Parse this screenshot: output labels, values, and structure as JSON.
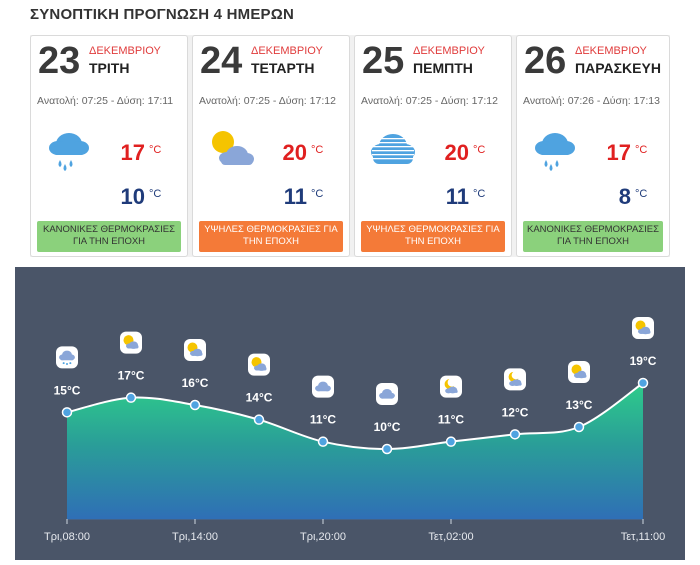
{
  "header": {
    "title": "ΣΥΝΟΠΤΙΚΗ ΠΡΟΓΝΩΣΗ 4 ΗΜΕΡΩΝ"
  },
  "cards": [
    {
      "day": "23",
      "month": "ΔΕΚΕΜΒΡΙΟΥ",
      "weekday": "ΤΡΙΤΗ",
      "sun": "Ανατολή: 07:25 - Δύση: 17:11",
      "icon": "rain-cloud-icon",
      "max": "17",
      "min": "10",
      "unit": "°C",
      "badge": "ΚΑΝΟΝΙΚΕΣ ΘΕΡΜΟΚΡΑΣΙΕΣ ΓΙΑ ΤΗΝ ΕΠΟΧΗ",
      "badge_color": "#8bd17c"
    },
    {
      "day": "24",
      "month": "ΔΕΚΕΜΒΡΙΟΥ",
      "weekday": "ΤΕΤΑΡΤΗ",
      "sun": "Ανατολή: 07:25 - Δύση: 17:12",
      "icon": "sun-cloud-icon",
      "max": "20",
      "min": "11",
      "unit": "°C",
      "badge": "ΥΨΗΛΕΣ ΘΕΡΜΟΚΡΑΣΙΕΣ ΓΙΑ ΤΗΝ ΕΠΟΧΗ",
      "badge_color": "#f47a38"
    },
    {
      "day": "25",
      "month": "ΔΕΚΕΜΒΡΙΟΥ",
      "weekday": "ΠΕΜΠΤΗ",
      "sun": "Ανατολή: 07:25 - Δύση: 17:12",
      "icon": "fog-cloud-icon",
      "max": "20",
      "min": "11",
      "unit": "°C",
      "badge": "ΥΨΗΛΕΣ ΘΕΡΜΟΚΡΑΣΙΕΣ ΓΙΑ ΤΗΝ ΕΠΟΧΗ",
      "badge_color": "#f47a38"
    },
    {
      "day": "26",
      "month": "ΔΕΚΕΜΒΡΙΟΥ",
      "weekday": "ΠΑΡΑΣΚΕΥΗ",
      "sun": "Ανατολή: 07:26 - Δύση: 17:13",
      "icon": "rain-cloud-icon",
      "max": "17",
      "min": "8",
      "unit": "°C",
      "badge": "ΚΑΝΟΝΙΚΕΣ ΘΕΡΜΟΚΡΑΣΙΕΣ ΓΙΑ ΤΗΝ ΕΠΟΧΗ",
      "badge_color": "#8bd17c"
    }
  ],
  "chart_data": {
    "type": "area",
    "title": "",
    "xlabel": "",
    "ylabel": "",
    "x_tick_labels": [
      "Τρι,08:00",
      "Τρι,14:00",
      "Τρι,20:00",
      "Τετ,02:00",
      "Τετ,11:00"
    ],
    "points": [
      {
        "t": "Τρι,08:00",
        "value": 15,
        "label": "15°C",
        "icon": "rain-cloud-icon"
      },
      {
        "t": "Τρι,11:00",
        "value": 17,
        "label": "17°C",
        "icon": "sun-cloud-icon"
      },
      {
        "t": "Τρι,14:00",
        "value": 16,
        "label": "16°C",
        "icon": "sun-cloud-icon"
      },
      {
        "t": "Τρι,17:00",
        "value": 14,
        "label": "14°C",
        "icon": "sun-cloud-icon"
      },
      {
        "t": "Τρι,20:00",
        "value": 11,
        "label": "11°C",
        "icon": "cloud-icon"
      },
      {
        "t": "Τρι,23:00",
        "value": 10,
        "label": "10°C",
        "icon": "cloud-icon"
      },
      {
        "t": "Τετ,02:00",
        "value": 11,
        "label": "11°C",
        "icon": "moon-cloud-icon"
      },
      {
        "t": "Τετ,05:00",
        "value": 12,
        "label": "12°C",
        "icon": "moon-cloud-icon"
      },
      {
        "t": "Τετ,08:00",
        "value": 13,
        "label": "13°C",
        "icon": "sun-cloud-icon"
      },
      {
        "t": "Τετ,11:00",
        "value": 19,
        "label": "19°C",
        "icon": "sun-cloud-icon"
      }
    ],
    "colors": {
      "top": "#2ecc8a",
      "bottom": "#2f6fb6",
      "line": "#ffffff",
      "background": "#4a5568"
    }
  }
}
